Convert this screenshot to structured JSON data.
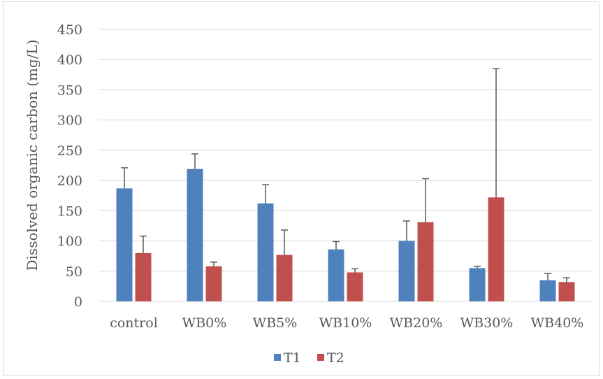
{
  "chart_data": {
    "type": "bar",
    "title": "",
    "xlabel": "",
    "ylabel": "Dissolved organic carbon (mg/L)",
    "ylim": [
      0,
      450
    ],
    "yticks": [
      0,
      50,
      100,
      150,
      200,
      250,
      300,
      350,
      400,
      450
    ],
    "grid": true,
    "legend": "bottom",
    "categories": [
      "control",
      "WB0%",
      "WB5%",
      "WB10%",
      "WB20%",
      "WB30%",
      "WB40%"
    ],
    "series": [
      {
        "name": "T1",
        "color": "#4f81bd",
        "values": [
          187,
          219,
          162,
          86,
          100,
          55,
          35
        ],
        "error": [
          34,
          25,
          31,
          13,
          33,
          3,
          11
        ]
      },
      {
        "name": "T2",
        "color": "#c0504d",
        "values": [
          80,
          58,
          77,
          48,
          131,
          172,
          32
        ],
        "error": [
          28,
          7,
          41,
          6,
          72,
          213,
          7
        ]
      }
    ]
  }
}
